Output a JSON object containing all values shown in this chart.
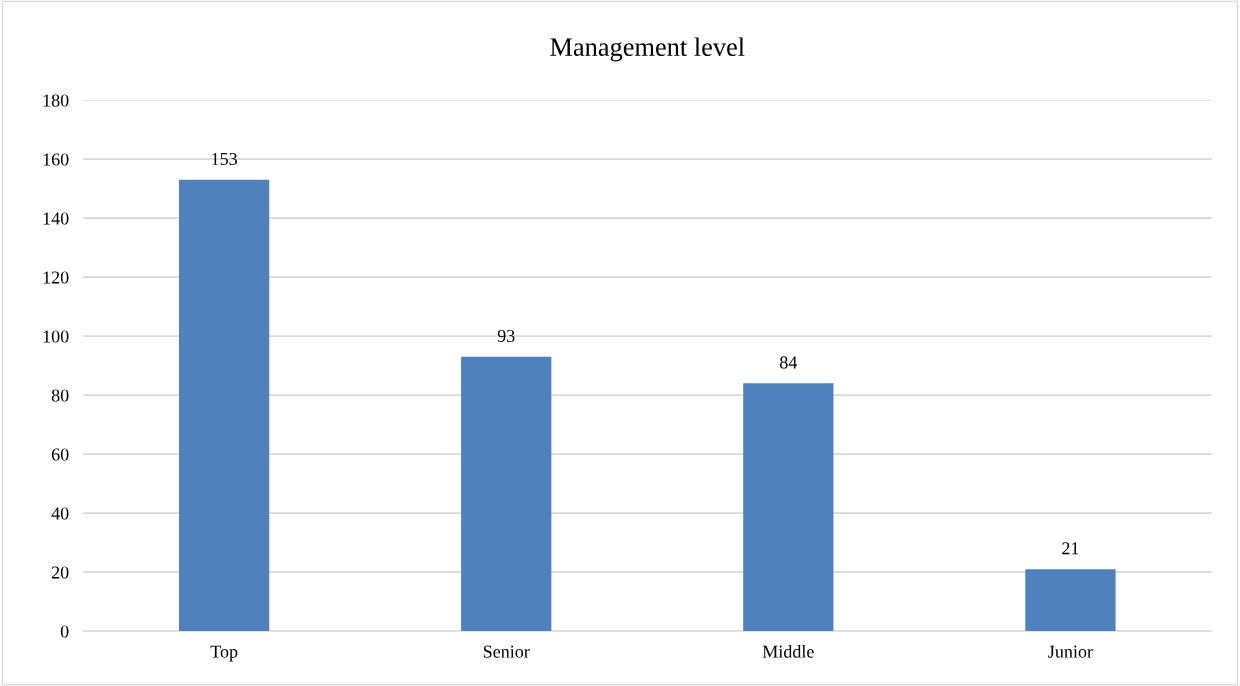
{
  "chart_data": {
    "type": "bar",
    "title": "Management level",
    "categories": [
      "Top",
      "Senior",
      "Middle",
      "Junior"
    ],
    "values": [
      153,
      93,
      84,
      21
    ],
    "color": "#4f81bd",
    "ylim": [
      0,
      180
    ],
    "yticks": [
      0,
      20,
      40,
      60,
      80,
      100,
      120,
      140,
      160,
      180
    ],
    "grid": "y",
    "data_labels": true
  }
}
